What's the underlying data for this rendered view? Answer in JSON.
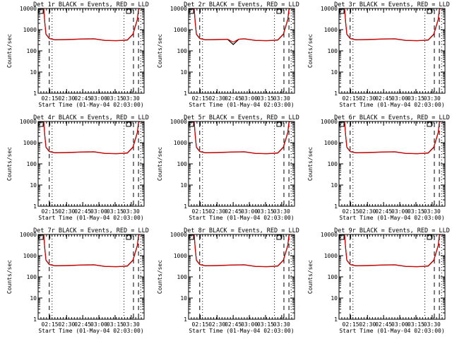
{
  "chart_data": [
    {
      "type": "line",
      "title": "Det 1r BLACK = Events, RED = LLD",
      "ylabel": "Counts/sec",
      "xlabel": "Start Time (01-May-04 02:03:00)",
      "xtick_labels": [
        "02:15",
        "02:30",
        "02:45",
        "03:00",
        "03:15",
        "03:30"
      ],
      "ytick_labels": [
        "1",
        "10",
        "100",
        "1000",
        "10000"
      ],
      "ylim": [
        1,
        10000
      ],
      "yscale": "log",
      "series": [
        {
          "name": "Events",
          "color": "#000000",
          "x": [
            5,
            6,
            7,
            10,
            15,
            25,
            40,
            50,
            60,
            70,
            75,
            80,
            85,
            89,
            90,
            91
          ],
          "y": [
            10000,
            2000,
            600,
            380,
            330,
            340,
            360,
            370,
            310,
            300,
            310,
            320,
            600,
            3000,
            9000,
            10000
          ]
        },
        {
          "name": "LLD",
          "color": "#e00000",
          "x": [
            5,
            6,
            7,
            10,
            15,
            25,
            40,
            50,
            60,
            70,
            75,
            80,
            85,
            89,
            90,
            91
          ],
          "y": [
            10000,
            2100,
            620,
            390,
            335,
            345,
            365,
            375,
            315,
            305,
            315,
            330,
            620,
            3100,
            9200,
            10000
          ]
        }
      ],
      "vlines_dashed": [
        10,
        85.5,
        90
      ],
      "vlines_dotted": [
        12.5,
        77,
        92
      ]
    },
    {
      "type": "line",
      "title": "Det 2r BLACK = Events, RED = LLD",
      "ylabel": "Counts/sec",
      "xlabel": "Start Time (01-May-04 02:03:00)",
      "xtick_labels": [
        "02:15",
        "02:30",
        "02:45",
        "03:00",
        "03:15",
        "03:30"
      ],
      "ytick_labels": [
        "1",
        "10",
        "100",
        "1000",
        "10000"
      ],
      "ylim": [
        1,
        10000
      ],
      "yscale": "log",
      "series": [
        {
          "name": "Events",
          "color": "#000000",
          "x": [
            5,
            6,
            7,
            10,
            15,
            25,
            35,
            40,
            45,
            50,
            60,
            70,
            75,
            80,
            85,
            89,
            90,
            91
          ],
          "y": [
            10000,
            2000,
            600,
            380,
            330,
            340,
            350,
            200,
            350,
            370,
            310,
            300,
            310,
            320,
            600,
            3000,
            9000,
            10000
          ]
        },
        {
          "name": "LLD",
          "color": "#e00000",
          "x": [
            5,
            6,
            7,
            10,
            15,
            25,
            35,
            40,
            45,
            50,
            60,
            70,
            75,
            80,
            85,
            89,
            90,
            91
          ],
          "y": [
            10000,
            2100,
            620,
            390,
            335,
            345,
            355,
            260,
            355,
            375,
            315,
            305,
            315,
            330,
            620,
            3100,
            9200,
            10000
          ]
        }
      ],
      "vlines_dashed": [
        10,
        85.5,
        90
      ],
      "vlines_dotted": [
        12.5,
        77,
        92
      ]
    },
    {
      "type": "line",
      "title": "Det 3r BLACK = Events, RED = LLD",
      "ylabel": "Counts/sec",
      "xlabel": "Start Time (01-May-04 02:03:00)",
      "xtick_labels": [
        "02:15",
        "02:30",
        "02:45",
        "03:00",
        "03:15",
        "03:30"
      ],
      "ytick_labels": [
        "1",
        "10",
        "100",
        "1000",
        "10000"
      ],
      "ylim": [
        1,
        10000
      ],
      "yscale": "log",
      "series": [
        {
          "name": "Events",
          "color": "#000000",
          "x": [
            5,
            6,
            7,
            10,
            15,
            25,
            40,
            50,
            60,
            70,
            75,
            80,
            85,
            89,
            90,
            91
          ],
          "y": [
            10000,
            2000,
            600,
            380,
            330,
            340,
            360,
            370,
            310,
            300,
            310,
            320,
            600,
            3000,
            9000,
            10000
          ]
        },
        {
          "name": "LLD",
          "color": "#e00000",
          "x": [
            5,
            6,
            7,
            10,
            15,
            25,
            40,
            50,
            60,
            70,
            75,
            80,
            85,
            89,
            90,
            91
          ],
          "y": [
            10000,
            2100,
            620,
            390,
            335,
            345,
            365,
            375,
            315,
            305,
            315,
            330,
            620,
            3100,
            9200,
            10000
          ]
        }
      ],
      "vlines_dashed": [
        10,
        85.5,
        90
      ],
      "vlines_dotted": [
        12.5,
        77,
        92
      ]
    },
    {
      "type": "line",
      "title": "Det 4r BLACK = Events, RED = LLD",
      "ylabel": "Counts/sec",
      "xlabel": "Start Time (01-May-04 02:03:00)",
      "xtick_labels": [
        "02:15",
        "02:30",
        "02:45",
        "03:00",
        "03:15",
        "03:30"
      ],
      "ytick_labels": [
        "1",
        "10",
        "100",
        "1000",
        "10000"
      ],
      "ylim": [
        1,
        10000
      ],
      "yscale": "log",
      "series": [
        {
          "name": "Events",
          "color": "#000000",
          "x": [
            5,
            6,
            7,
            10,
            15,
            25,
            40,
            50,
            60,
            70,
            75,
            80,
            85,
            89,
            90,
            91
          ],
          "y": [
            10000,
            2000,
            600,
            380,
            330,
            340,
            360,
            370,
            310,
            300,
            310,
            320,
            600,
            3000,
            9000,
            10000
          ]
        },
        {
          "name": "LLD",
          "color": "#e00000",
          "x": [
            5,
            6,
            7,
            10,
            15,
            25,
            40,
            50,
            60,
            70,
            75,
            80,
            85,
            89,
            90,
            91
          ],
          "y": [
            10000,
            2100,
            620,
            390,
            335,
            345,
            365,
            375,
            315,
            305,
            315,
            330,
            620,
            3100,
            9200,
            10000
          ]
        }
      ],
      "vlines_dashed": [
        10,
        85.5,
        90
      ],
      "vlines_dotted": [
        12.5,
        77,
        92
      ]
    },
    {
      "type": "line",
      "title": "Det 5r BLACK = Events, RED = LLD",
      "ylabel": "Counts/sec",
      "xlabel": "Start Time (01-May-04 02:03:00)",
      "xtick_labels": [
        "02:15",
        "02:30",
        "02:45",
        "03:00",
        "03:15",
        "03:30"
      ],
      "ytick_labels": [
        "1",
        "10",
        "100",
        "1000",
        "10000"
      ],
      "ylim": [
        1,
        10000
      ],
      "yscale": "log",
      "series": [
        {
          "name": "Events",
          "color": "#000000",
          "x": [
            5,
            6,
            7,
            10,
            15,
            25,
            40,
            50,
            60,
            70,
            75,
            80,
            85,
            89,
            90,
            91
          ],
          "y": [
            10000,
            2000,
            600,
            380,
            330,
            340,
            360,
            370,
            310,
            300,
            310,
            320,
            600,
            3000,
            9000,
            10000
          ]
        },
        {
          "name": "LLD",
          "color": "#e00000",
          "x": [
            5,
            6,
            7,
            10,
            15,
            25,
            40,
            50,
            60,
            70,
            75,
            80,
            85,
            89,
            90,
            91
          ],
          "y": [
            10000,
            2100,
            620,
            390,
            335,
            345,
            365,
            375,
            315,
            305,
            315,
            330,
            620,
            3100,
            9200,
            10000
          ]
        }
      ],
      "vlines_dashed": [
        10,
        85.5,
        90
      ],
      "vlines_dotted": [
        12.5,
        77,
        92
      ]
    },
    {
      "type": "line",
      "title": "Det 6r BLACK = Events, RED = LLD",
      "ylabel": "Counts/sec",
      "xlabel": "Start Time (01-May-04 02:03:00)",
      "xtick_labels": [
        "02:15",
        "02:30",
        "02:45",
        "03:00",
        "03:15",
        "03:30"
      ],
      "ytick_labels": [
        "1",
        "10",
        "100",
        "1000",
        "10000"
      ],
      "ylim": [
        1,
        10000
      ],
      "yscale": "log",
      "series": [
        {
          "name": "Events",
          "color": "#000000",
          "x": [
            5,
            6,
            7,
            10,
            15,
            25,
            40,
            50,
            60,
            70,
            75,
            80,
            85,
            89,
            90,
            91
          ],
          "y": [
            10000,
            2000,
            600,
            380,
            330,
            340,
            360,
            370,
            310,
            300,
            310,
            320,
            600,
            3000,
            9000,
            10000
          ]
        },
        {
          "name": "LLD",
          "color": "#e00000",
          "x": [
            5,
            6,
            7,
            10,
            15,
            25,
            40,
            50,
            60,
            70,
            75,
            80,
            85,
            89,
            90,
            91
          ],
          "y": [
            10000,
            2100,
            620,
            390,
            335,
            345,
            365,
            375,
            315,
            305,
            315,
            330,
            620,
            3100,
            9200,
            10000
          ]
        }
      ],
      "vlines_dashed": [
        10,
        85.5,
        90
      ],
      "vlines_dotted": [
        12.5,
        77,
        92
      ]
    },
    {
      "type": "line",
      "title": "Det 7r BLACK = Events, RED = LLD",
      "ylabel": "Counts/sec",
      "xlabel": "Start Time (01-May-04 02:03:00)",
      "xtick_labels": [
        "02:15",
        "02:30",
        "02:45",
        "03:00",
        "03:15",
        "03:30"
      ],
      "ytick_labels": [
        "1",
        "10",
        "100",
        "1000",
        "10000"
      ],
      "ylim": [
        1,
        10000
      ],
      "yscale": "log",
      "series": [
        {
          "name": "Events",
          "color": "#000000",
          "x": [
            5,
            6,
            7,
            10,
            15,
            25,
            40,
            50,
            60,
            70,
            75,
            80,
            85,
            89,
            90,
            91
          ],
          "y": [
            10000,
            2000,
            600,
            380,
            330,
            340,
            360,
            370,
            310,
            300,
            310,
            320,
            600,
            3000,
            9000,
            10000
          ]
        },
        {
          "name": "LLD",
          "color": "#e00000",
          "x": [
            5,
            6,
            7,
            10,
            15,
            25,
            40,
            50,
            60,
            70,
            75,
            80,
            85,
            89,
            90,
            91
          ],
          "y": [
            10000,
            2100,
            620,
            390,
            335,
            345,
            365,
            375,
            315,
            305,
            315,
            330,
            620,
            3100,
            9200,
            10000
          ]
        }
      ],
      "vlines_dashed": [
        10,
        85.5,
        90
      ],
      "vlines_dotted": [
        12.5,
        77,
        92
      ]
    },
    {
      "type": "line",
      "title": "Det 8r BLACK = Events, RED = LLD",
      "ylabel": "Counts/sec",
      "xlabel": "Start Time (01-May-04 02:03:00)",
      "xtick_labels": [
        "02:15",
        "02:30",
        "02:45",
        "03:00",
        "03:15",
        "03:30"
      ],
      "ytick_labels": [
        "1",
        "10",
        "100",
        "1000",
        "10000"
      ],
      "ylim": [
        1,
        10000
      ],
      "yscale": "log",
      "series": [
        {
          "name": "Events",
          "color": "#000000",
          "x": [
            5,
            6,
            7,
            10,
            15,
            25,
            40,
            50,
            60,
            70,
            75,
            80,
            85,
            89,
            90,
            91
          ],
          "y": [
            10000,
            2000,
            600,
            380,
            330,
            340,
            360,
            370,
            310,
            300,
            310,
            320,
            600,
            3000,
            9000,
            10000
          ]
        },
        {
          "name": "LLD",
          "color": "#e00000",
          "x": [
            5,
            6,
            7,
            10,
            15,
            25,
            40,
            50,
            60,
            70,
            75,
            80,
            85,
            89,
            90,
            91
          ],
          "y": [
            10000,
            2100,
            620,
            390,
            335,
            345,
            365,
            375,
            315,
            305,
            315,
            330,
            620,
            3100,
            9200,
            10000
          ]
        }
      ],
      "vlines_dashed": [
        10,
        85.5,
        90
      ],
      "vlines_dotted": [
        12.5,
        77,
        92
      ]
    },
    {
      "type": "line",
      "title": "Det 9r BLACK = Events, RED = LLD",
      "ylabel": "Counts/sec",
      "xlabel": "Start Time (01-May-04 02:03:00)",
      "xtick_labels": [
        "02:15",
        "02:30",
        "02:45",
        "03:00",
        "03:15",
        "03:30"
      ],
      "ytick_labels": [
        "1",
        "10",
        "100",
        "1000",
        "10000"
      ],
      "ylim": [
        1,
        10000
      ],
      "yscale": "log",
      "series": [
        {
          "name": "Events",
          "color": "#000000",
          "x": [
            5,
            6,
            7,
            10,
            15,
            25,
            40,
            50,
            60,
            70,
            75,
            80,
            85,
            89,
            90,
            91
          ],
          "y": [
            10000,
            2000,
            600,
            380,
            330,
            340,
            360,
            370,
            310,
            300,
            310,
            320,
            600,
            3000,
            9000,
            10000
          ]
        },
        {
          "name": "LLD",
          "color": "#e00000",
          "x": [
            5,
            6,
            7,
            10,
            15,
            25,
            40,
            50,
            60,
            70,
            75,
            80,
            85,
            89,
            90,
            91
          ],
          "y": [
            10000,
            2100,
            620,
            390,
            335,
            345,
            365,
            375,
            315,
            305,
            315,
            330,
            620,
            3100,
            9200,
            10000
          ]
        }
      ],
      "vlines_dashed": [
        10,
        85.5,
        90
      ],
      "vlines_dotted": [
        12.5,
        77,
        92
      ]
    }
  ]
}
